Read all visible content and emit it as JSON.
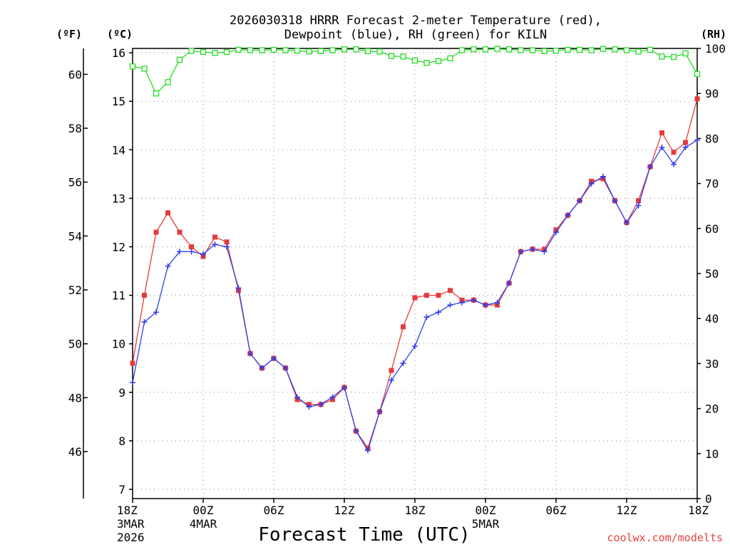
{
  "chart_data": {
    "type": "line",
    "title": "2026030318 HRRR Forecast 2-meter Temperature (red),",
    "subtitle": "Dewpoint (blue), RH (green) for KILN",
    "xlabel": "Forecast Time (UTC)",
    "left_units_f": "(ºF)",
    "left_units_c": "(ºC)",
    "right_units": "(RH)",
    "credit": "coolwx.com/modelts",
    "xlim": [
      0,
      48
    ],
    "ylim_c": [
      6.8,
      16.1
    ],
    "ylim_rh": [
      0,
      100
    ],
    "grid": true,
    "x_ticks": [
      {
        "x": 0,
        "lines": [
          "18Z",
          "3MAR",
          "2026"
        ]
      },
      {
        "x": 6,
        "lines": [
          "00Z",
          "4MAR"
        ]
      },
      {
        "x": 12,
        "lines": [
          "06Z"
        ]
      },
      {
        "x": 18,
        "lines": [
          "12Z"
        ]
      },
      {
        "x": 24,
        "lines": [
          "18Z"
        ]
      },
      {
        "x": 30,
        "lines": [
          "00Z",
          "5MAR"
        ]
      },
      {
        "x": 36,
        "lines": [
          "06Z"
        ]
      },
      {
        "x": 42,
        "lines": [
          "12Z"
        ]
      },
      {
        "x": 48,
        "lines": [
          "18Z"
        ]
      }
    ],
    "y_ticks_c": [
      "7",
      "8",
      "9",
      "10",
      "11",
      "12",
      "13",
      "14",
      "15",
      "16"
    ],
    "y_ticks_f": [
      "46",
      "48",
      "50",
      "52",
      "54",
      "56",
      "58",
      "60"
    ],
    "y_ticks_rh": [
      "0",
      "10",
      "20",
      "30",
      "40",
      "50",
      "60",
      "70",
      "80",
      "90",
      "100"
    ],
    "series": [
      {
        "name": "2-meter Temperature",
        "color": "#e83a3a",
        "marker": "filled-square",
        "axis": "celsius",
        "values": [
          9.6,
          11.0,
          12.3,
          12.7,
          12.3,
          12.0,
          11.8,
          12.2,
          12.1,
          11.1,
          9.8,
          9.5,
          9.7,
          9.5,
          8.85,
          8.75,
          8.75,
          8.85,
          9.1,
          8.2,
          7.85,
          8.6,
          9.45,
          10.35,
          10.95,
          11.0,
          11.0,
          11.1,
          10.9,
          10.9,
          10.8,
          10.8,
          11.25,
          11.9,
          11.95,
          11.95,
          12.35,
          12.65,
          12.95,
          13.35,
          13.4,
          12.95,
          12.5,
          12.95,
          13.65,
          14.35,
          13.95,
          14.15,
          15.05
        ]
      },
      {
        "name": "Dewpoint",
        "color": "#2f3fe8",
        "marker": "plus",
        "axis": "celsius",
        "values": [
          9.2,
          10.45,
          10.65,
          11.6,
          11.9,
          11.9,
          11.85,
          12.05,
          12.0,
          11.15,
          9.8,
          9.5,
          9.7,
          9.5,
          8.9,
          8.7,
          8.75,
          8.9,
          9.1,
          8.2,
          7.8,
          8.6,
          9.25,
          9.6,
          9.95,
          10.55,
          10.65,
          10.8,
          10.85,
          10.9,
          10.8,
          10.85,
          11.25,
          11.9,
          11.95,
          11.9,
          12.3,
          12.65,
          12.95,
          13.3,
          13.45,
          12.95,
          12.5,
          12.85,
          13.65,
          14.05,
          13.7,
          14.05,
          14.2
        ]
      },
      {
        "name": "RH",
        "color": "#22dd22",
        "marker": "open-square",
        "axis": "rh",
        "values": [
          96,
          95.5,
          90,
          92.5,
          97.5,
          99.5,
          99.2,
          99.0,
          99.2,
          99.7,
          99.6,
          99.6,
          99.7,
          99.6,
          99.5,
          99.3,
          99.4,
          99.6,
          99.8,
          99.8,
          99.4,
          99.3,
          98.3,
          98.2,
          97.3,
          96.8,
          97.2,
          97.8,
          99.6,
          99.8,
          99.8,
          99.9,
          99.8,
          99.6,
          99.6,
          99.4,
          99.5,
          99.7,
          99.7,
          99.6,
          99.9,
          99.8,
          99.6,
          99.3,
          99.7,
          98.2,
          98.1,
          98.9,
          94.3
        ]
      }
    ]
  }
}
